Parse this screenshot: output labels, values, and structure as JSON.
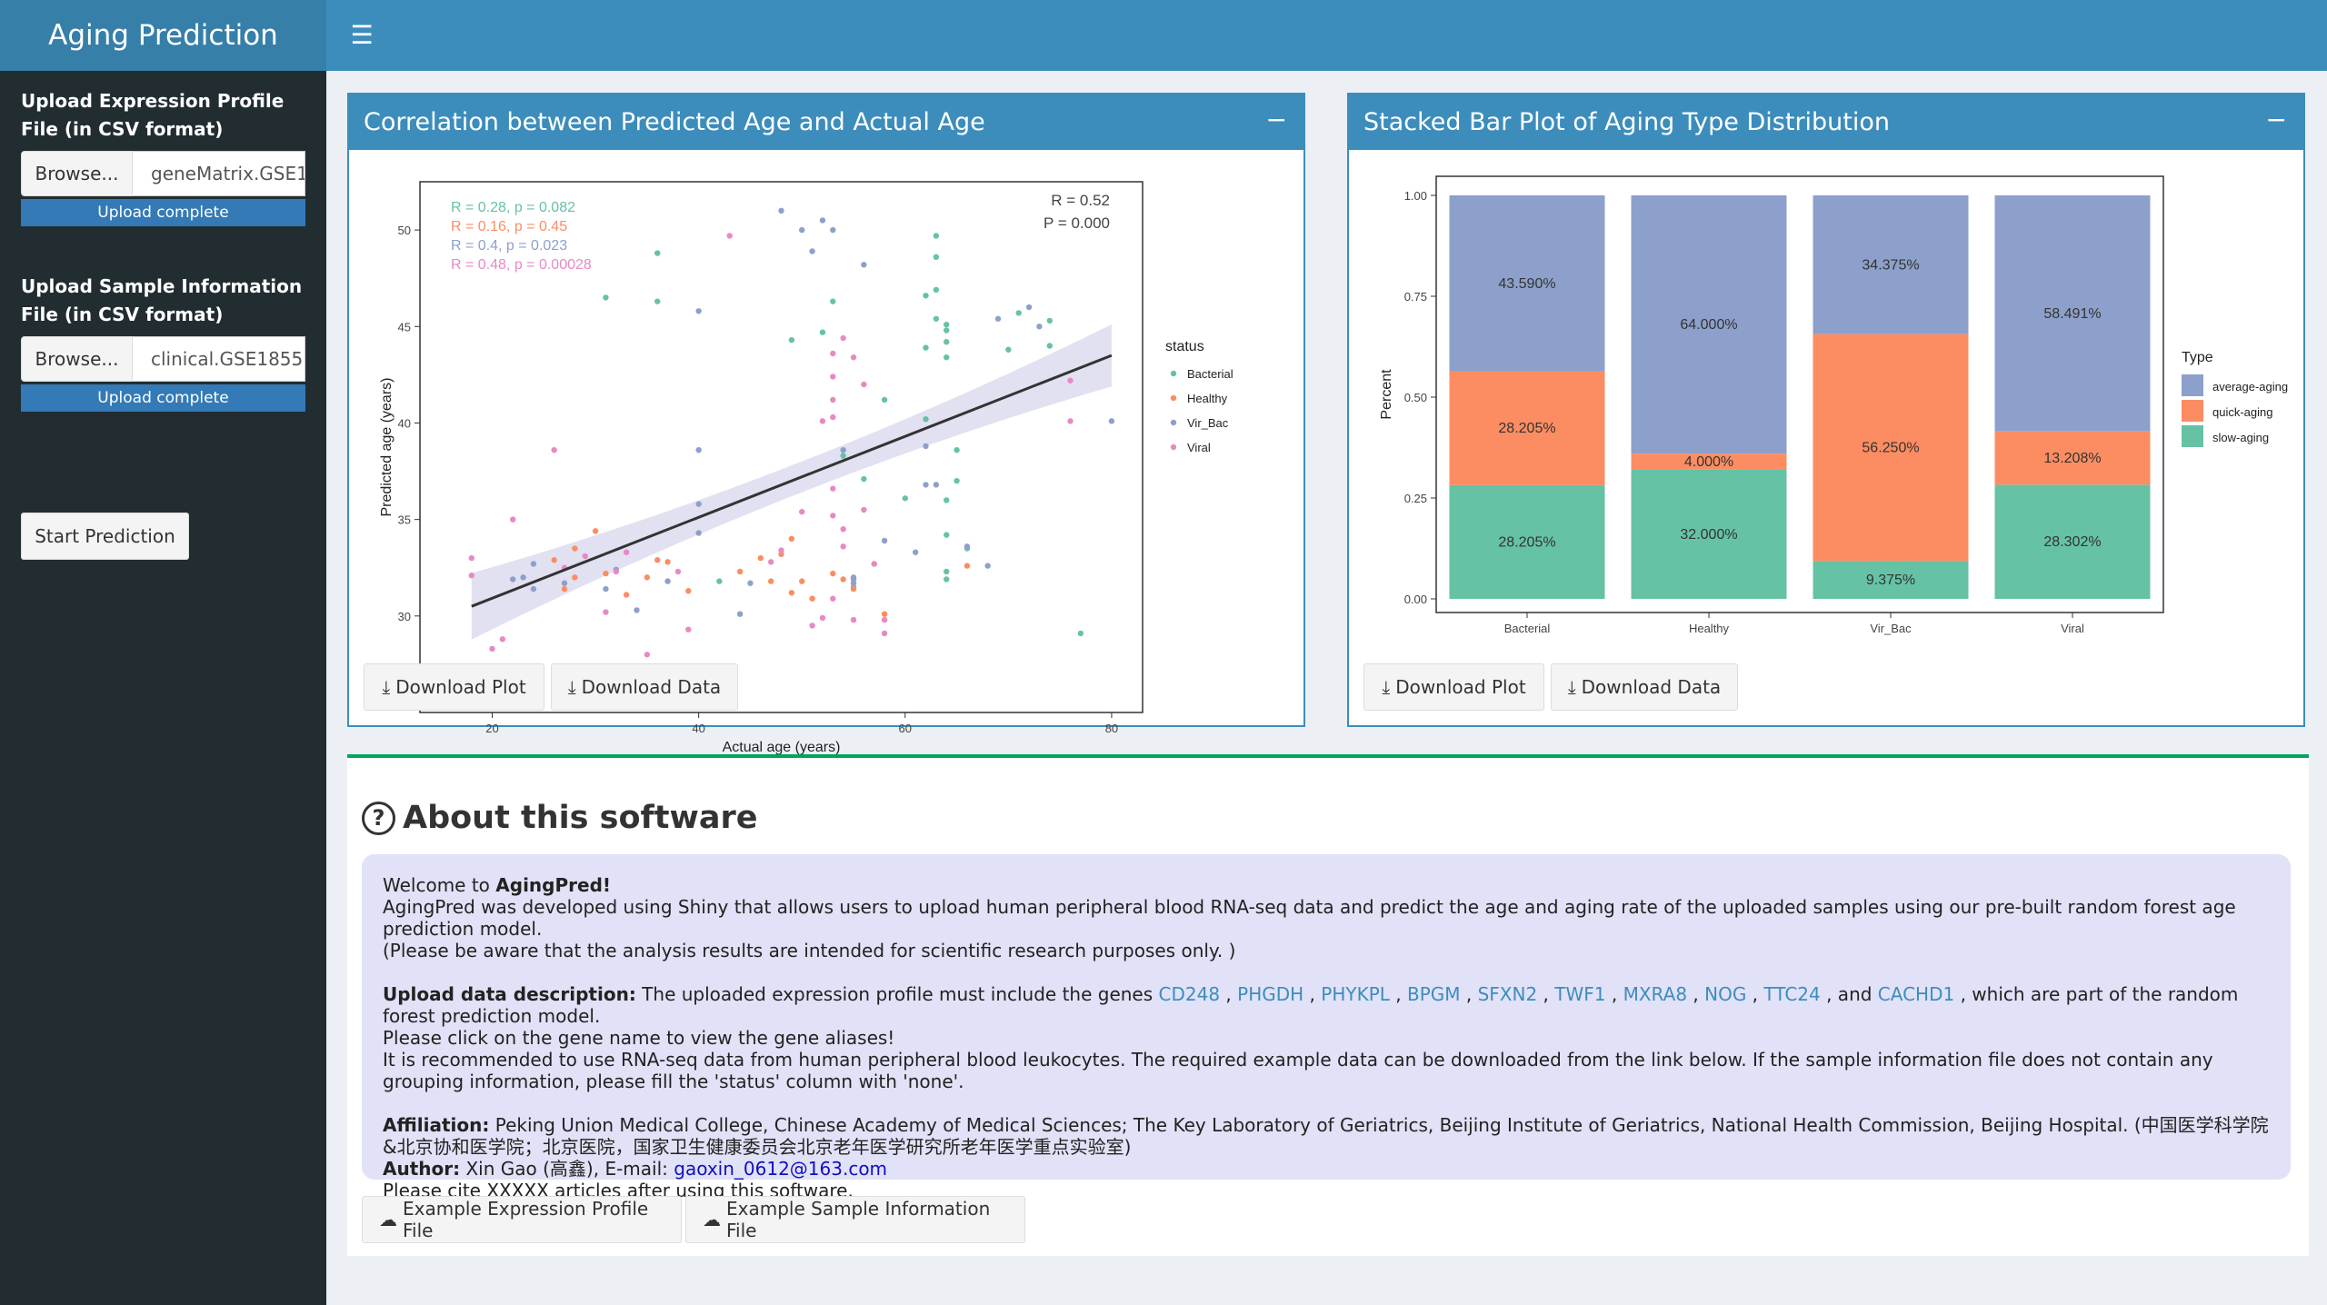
{
  "app_title": "Aging Prediction",
  "sidebar": {
    "expr_label": "Upload Expression Profile File (in CSV format)",
    "expr_browse": "Browse...",
    "expr_file": "geneMatrix.GSE1",
    "expr_status": "Upload complete",
    "sample_label": "Upload Sample Information File (in CSV format)",
    "sample_browse": "Browse...",
    "sample_file": "clinical.GSE1855",
    "sample_status": "Upload complete",
    "start_button": "Start Prediction"
  },
  "box1": {
    "title": "Correlation between Predicted Age and Actual Age",
    "collapse": "−",
    "download_plot": "Download Plot",
    "download_data": "Download Data"
  },
  "box2": {
    "title": "Stacked Bar Plot of Aging Type Distribution",
    "collapse": "−",
    "download_plot": "Download Plot",
    "download_data": "Download Data"
  },
  "about": {
    "title": "About this software",
    "welcome_prefix": "Welcome to ",
    "welcome_name": "AgingPred!",
    "intro": "AgingPred was developed using Shiny that allows users to upload human peripheral blood RNA-seq data and predict the age and aging rate of the uploaded samples using our pre-built random forest age prediction model.",
    "note": "(Please be aware that the analysis results are intended for scientific research purposes only. )",
    "upload_head": "Upload data description:",
    "upload_text": " The uploaded expression profile must include the genes ",
    "genes": [
      "CD248",
      "PHGDH",
      "PHYKPL",
      "BPGM",
      "SFXN2",
      "TWF1",
      "MXRA8",
      "NOG",
      "TTC24",
      "CACHD1"
    ],
    "upload_tail": ", which are part of the random forest prediction model.",
    "click_text": "Please click on the gene name to view the gene aliases!",
    "recommend": "It is recommended to use RNA-seq data from human peripheral blood leukocytes. The required example data can be downloaded from the link below. If the sample information file does not contain any grouping information, please fill the 'status' column with 'none'.",
    "affil_head": "Affiliation:",
    "affil_text": " Peking Union Medical College, Chinese Academy of Medical Sciences; The Key Laboratory of Geriatrics, Beijing Institute of Geriatrics, National Health Commission, Beijing Hospital. (中国医学科学院&北京协和医学院；北京医院，国家卫生健康委员会北京老年医学研究所老年医学重点实验室)",
    "author_head": "Author:",
    "author_text": " Xin Gao (高鑫), E-mail: ",
    "email": "gaoxin_0612@163.com",
    "cite": "Please cite XXXXX articles after using this software.",
    "example_expr": "Example Expression Profile File",
    "example_sample": "Example Sample Information File"
  },
  "colors": {
    "header": "#3c8dbc",
    "logo": "#367fa9",
    "sidebar": "#222d32",
    "bacterial": "#66c2a5",
    "healthy": "#fc8d62",
    "vir_bac": "#8da0cb",
    "viral": "#e78ac3"
  },
  "chart_data": [
    {
      "type": "scatter",
      "xlabel": "Actual age (years)",
      "ylabel": "Predicted age (years)",
      "xlim": [
        13,
        83
      ],
      "ylim": [
        25,
        52.5
      ],
      "xticks": [
        20,
        40,
        60,
        80
      ],
      "yticks": [
        30,
        35,
        40,
        45,
        50
      ],
      "stats": [
        "R = 0.52",
        "P = 0.000"
      ],
      "group_stats": [
        {
          "group": "Bacterial",
          "text": "R = 0.28, p = 0.082"
        },
        {
          "group": "Healthy",
          "text": "R = 0.16, p = 0.45"
        },
        {
          "group": "Vir_Bac",
          "text": "R = 0.4, p = 0.023"
        },
        {
          "group": "Viral",
          "text": "R = 0.48, p = 0.00028"
        }
      ],
      "legend_title": "status",
      "legend": [
        "Bacterial",
        "Healthy",
        "Vir_Bac",
        "Viral"
      ],
      "regression": {
        "x": [
          18,
          80
        ],
        "y": [
          30.5,
          43.5
        ]
      },
      "series": [
        {
          "name": "Bacterial",
          "points": [
            [
              31,
              46.5
            ],
            [
              36,
              48.8
            ],
            [
              36,
              46.3
            ],
            [
              42,
              31.8
            ],
            [
              49,
              44.3
            ],
            [
              52,
              44.7
            ],
            [
              53,
              46.3
            ],
            [
              54,
              38.3
            ],
            [
              55,
              31.5
            ],
            [
              56,
              37.1
            ],
            [
              58,
              41.2
            ],
            [
              62,
              40.2
            ],
            [
              62,
              43.9
            ],
            [
              62,
              46.6
            ],
            [
              63,
              49.7
            ],
            [
              63,
              48.6
            ],
            [
              63,
              46.9
            ],
            [
              63,
              45.4
            ],
            [
              64,
              43.4
            ],
            [
              64,
              44.2
            ],
            [
              64,
              44.8
            ],
            [
              64,
              45.1
            ],
            [
              64,
              36.0
            ],
            [
              64,
              34.2
            ],
            [
              64,
              32.3
            ],
            [
              64,
              31.9
            ],
            [
              65,
              38.6
            ],
            [
              65,
              37.0
            ],
            [
              66,
              33.5
            ],
            [
              70,
              43.8
            ],
            [
              74,
              44.0
            ],
            [
              77,
              29.1
            ],
            [
              74,
              45.3
            ],
            [
              71,
              45.7
            ],
            [
              60,
              36.1
            ]
          ]
        },
        {
          "name": "Healthy",
          "points": [
            [
              26,
              32.9
            ],
            [
              27,
              31.4
            ],
            [
              28,
              32.0
            ],
            [
              28,
              33.5
            ],
            [
              30,
              34.4
            ],
            [
              31,
              32.2
            ],
            [
              33,
              31.1
            ],
            [
              35,
              32.0
            ],
            [
              36,
              32.9
            ],
            [
              37,
              32.8
            ],
            [
              39,
              31.3
            ],
            [
              44,
              32.3
            ],
            [
              46,
              33.0
            ],
            [
              47,
              31.8
            ],
            [
              48,
              33.2
            ],
            [
              49,
              34.0
            ],
            [
              49,
              31.2
            ],
            [
              50,
              31.8
            ],
            [
              51,
              30.9
            ],
            [
              53,
              32.2
            ],
            [
              54,
              31.9
            ],
            [
              55,
              31.4
            ],
            [
              57,
              32.7
            ],
            [
              58,
              30.1
            ],
            [
              66,
              32.6
            ]
          ]
        },
        {
          "name": "Vir_Bac",
          "points": [
            [
              22,
              31.9
            ],
            [
              23,
              32.0
            ],
            [
              24,
              31.4
            ],
            [
              24,
              32.7
            ],
            [
              27,
              31.7
            ],
            [
              31,
              31.4
            ],
            [
              32,
              32.4
            ],
            [
              34,
              30.3
            ],
            [
              37,
              31.8
            ],
            [
              40,
              34.3
            ],
            [
              40,
              35.8
            ],
            [
              40,
              38.6
            ],
            [
              40,
              45.8
            ],
            [
              44,
              30.1
            ],
            [
              45,
              31.7
            ],
            [
              48,
              51.0
            ],
            [
              50,
              50.0
            ],
            [
              51,
              48.9
            ],
            [
              52,
              50.5
            ],
            [
              53,
              50.0
            ],
            [
              54,
              38.6
            ],
            [
              55,
              32.0
            ],
            [
              55,
              31.9
            ],
            [
              55,
              31.7
            ],
            [
              56,
              48.2
            ],
            [
              58,
              33.9
            ],
            [
              61,
              33.3
            ],
            [
              62,
              38.8
            ],
            [
              62,
              36.8
            ],
            [
              63,
              36.8
            ],
            [
              66,
              33.6
            ],
            [
              68,
              32.6
            ],
            [
              72,
              46.0
            ],
            [
              80,
              40.1
            ],
            [
              69,
              45.4
            ],
            [
              73,
              45.0
            ]
          ]
        },
        {
          "name": "Viral",
          "points": [
            [
              18,
              32.1
            ],
            [
              18,
              33.0
            ],
            [
              20,
              28.3
            ],
            [
              21,
              28.8
            ],
            [
              22,
              35.0
            ],
            [
              23,
              27.2
            ],
            [
              26,
              38.6
            ],
            [
              27,
              32.5
            ],
            [
              29,
              33.1
            ],
            [
              31,
              30.2
            ],
            [
              32,
              32.3
            ],
            [
              33,
              33.3
            ],
            [
              35,
              28.0
            ],
            [
              38,
              32.3
            ],
            [
              39,
              29.3
            ],
            [
              43,
              49.7
            ],
            [
              47,
              32.8
            ],
            [
              48,
              33.4
            ],
            [
              50,
              35.4
            ],
            [
              51,
              29.5
            ],
            [
              52,
              29.9
            ],
            [
              52,
              40.1
            ],
            [
              53,
              42.4
            ],
            [
              53,
              43.6
            ],
            [
              53,
              41.2
            ],
            [
              53,
              40.3
            ],
            [
              53,
              36.6
            ],
            [
              53,
              35.2
            ],
            [
              53,
              30.9
            ],
            [
              54,
              33.6
            ],
            [
              54,
              34.5
            ],
            [
              55,
              29.8
            ],
            [
              56,
              42.0
            ],
            [
              56,
              35.5
            ],
            [
              57,
              32.7
            ],
            [
              58,
              29.1
            ],
            [
              58,
              29.8
            ],
            [
              76,
              42.2
            ],
            [
              76,
              40.1
            ],
            [
              54,
              44.4
            ],
            [
              55,
              43.4
            ]
          ]
        }
      ]
    },
    {
      "type": "bar",
      "stacked": true,
      "xlabel": "",
      "ylabel": "Percent",
      "ylim": [
        0,
        1
      ],
      "yticks": [
        "0.00",
        "0.25",
        "0.50",
        "0.75",
        "1.00"
      ],
      "categories": [
        "Bacterial",
        "Healthy",
        "Vir_Bac",
        "Viral"
      ],
      "legend_title": "Type",
      "series": [
        {
          "name": "slow-aging",
          "color": "#66c2a5",
          "values": [
            0.28205,
            0.32,
            0.09375,
            0.28302
          ],
          "labels": [
            "28.205%",
            "32.000%",
            "9.375%",
            "28.302%"
          ]
        },
        {
          "name": "quick-aging",
          "color": "#fc8d62",
          "values": [
            0.28205,
            0.04,
            0.5625,
            0.13208
          ],
          "labels": [
            "28.205%",
            "4.000%",
            "56.250%",
            "13.208%"
          ]
        },
        {
          "name": "average-aging",
          "color": "#8da0cb",
          "values": [
            0.4359,
            0.64,
            0.34375,
            0.58491
          ],
          "labels": [
            "43.590%",
            "64.000%",
            "34.375%",
            "58.491%"
          ]
        }
      ],
      "legend": [
        "average-aging",
        "quick-aging",
        "slow-aging"
      ]
    }
  ]
}
